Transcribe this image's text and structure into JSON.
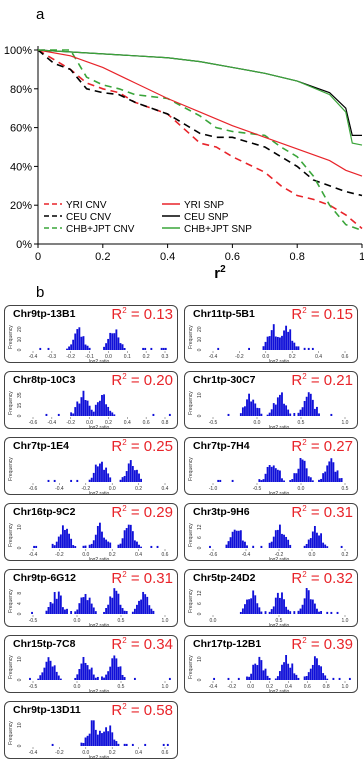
{
  "panel_a_label": "a",
  "panel_b_label": "b",
  "chart_data": [
    {
      "type": "line",
      "xlabel": "r",
      "xlabel_sup": "2",
      "ylabel": "",
      "xlim": [
        0,
        1
      ],
      "ylim": [
        0,
        100
      ],
      "xticks": [
        "0",
        "0.2",
        "0.4",
        "0.6",
        "0.8",
        "1"
      ],
      "yticks": [
        "0%",
        "20%",
        "40%",
        "60%",
        "80%",
        "100%"
      ],
      "legend_position": "bottom-left",
      "series": [
        {
          "name": "YRI CNV",
          "color": "#e8242a",
          "dash": true,
          "x": [
            0,
            0.05,
            0.1,
            0.15,
            0.2,
            0.25,
            0.3,
            0.4,
            0.5,
            0.55,
            0.6,
            0.7,
            0.75,
            0.8,
            0.85,
            0.9,
            0.95,
            1.0
          ],
          "y": [
            100,
            95,
            90,
            83,
            80,
            78,
            73,
            67,
            52,
            50,
            45,
            37,
            30,
            25,
            23,
            20,
            15,
            8
          ]
        },
        {
          "name": "CEU CNV",
          "color": "#000000",
          "dash": true,
          "x": [
            0,
            0.05,
            0.1,
            0.15,
            0.2,
            0.25,
            0.3,
            0.4,
            0.5,
            0.55,
            0.6,
            0.7,
            0.75,
            0.8,
            0.85,
            0.9,
            0.95,
            1.0
          ],
          "y": [
            100,
            93,
            90,
            80,
            78,
            77,
            73,
            67,
            57,
            55,
            55,
            50,
            45,
            40,
            33,
            30,
            27,
            25
          ]
        },
        {
          "name": "CHB+JPT CNV",
          "color": "#3aa53a",
          "dash": true,
          "x": [
            0,
            0.05,
            0.1,
            0.15,
            0.2,
            0.25,
            0.3,
            0.4,
            0.5,
            0.55,
            0.6,
            0.7,
            0.75,
            0.8,
            0.85,
            0.9,
            0.95,
            1.0
          ],
          "y": [
            100,
            100,
            100,
            86,
            82,
            80,
            77,
            75,
            66,
            60,
            58,
            56,
            50,
            45,
            35,
            20,
            10,
            7
          ]
        },
        {
          "name": "YRI SNP",
          "color": "#e8242a",
          "dash": false,
          "x": [
            0,
            0.1,
            0.2,
            0.3,
            0.4,
            0.5,
            0.6,
            0.7,
            0.8,
            0.9,
            0.95,
            1.0
          ],
          "y": [
            100,
            97,
            91,
            83,
            75,
            68,
            61,
            55,
            49,
            43,
            38,
            35
          ]
        },
        {
          "name": "CEU SNP",
          "color": "#000000",
          "dash": false,
          "x": [
            0,
            0.2,
            0.4,
            0.5,
            0.6,
            0.7,
            0.8,
            0.9,
            0.95,
            0.97,
            1.0
          ],
          "y": [
            100,
            98,
            96,
            94,
            91,
            88,
            84,
            78,
            70,
            56,
            56
          ]
        },
        {
          "name": "CHB+JPT SNP",
          "color": "#3aa53a",
          "dash": false,
          "x": [
            0,
            0.2,
            0.4,
            0.5,
            0.6,
            0.7,
            0.8,
            0.9,
            0.95,
            0.97,
            1.0
          ],
          "y": [
            100,
            98,
            96,
            94,
            91,
            88,
            84,
            77,
            68,
            52,
            51
          ]
        }
      ]
    },
    {
      "type": "bar",
      "panels": [
        {
          "name": "Chr9tp-13B1",
          "r2": "= 0.13",
          "xticks": [
            "-0.4",
            "-0.3",
            "-0.2",
            "-0.1",
            "0.0",
            "0.1",
            "0.2",
            "0.3"
          ],
          "yticks": [
            "0",
            "10",
            "20"
          ],
          "xlabel": "log2 ratio",
          "ylabel": "Frequency",
          "peaks": [
            0.35,
            0.6
          ]
        },
        {
          "name": "Chr11tp-5B1",
          "r2": "= 0.15",
          "xticks": [
            "-0.4",
            "-0.2",
            "0.0",
            "0.2",
            "0.4",
            "0.6"
          ],
          "yticks": [
            "0",
            "10",
            "20"
          ],
          "xlabel": "log2 ratio",
          "ylabel": "Frequency",
          "peaks": [
            0.45,
            0.55
          ]
        },
        {
          "name": "Chr8tp-10C3",
          "r2": "= 0.20",
          "xticks": [
            "-0.6",
            "-0.4",
            "-0.2",
            "0.0",
            "0.2",
            "0.4",
            "0.6",
            "0.8"
          ],
          "yticks": [
            "0",
            "15",
            "35"
          ],
          "xlabel": "log2 ratio",
          "ylabel": "Frequency",
          "peaks": [
            0.38,
            0.52
          ]
        },
        {
          "name": "Chr1tp-30C7",
          "r2": "= 0.21",
          "xticks": [
            "-0.5",
            "0.0",
            "0.5",
            "1.0"
          ],
          "yticks": [
            "0",
            "10"
          ],
          "xlabel": "log2 ratio",
          "ylabel": "Frequency",
          "peaks": [
            0.3,
            0.5,
            0.7
          ]
        },
        {
          "name": "Chr7tp-1E4",
          "r2": "= 0.25",
          "xticks": [
            "-0.6",
            "-0.4",
            "-0.2",
            "0.0",
            "0.2",
            "0.4"
          ],
          "yticks": [],
          "xlabel": "log2 ratio",
          "ylabel": "Frequency",
          "peaks": [
            0.5,
            0.72
          ]
        },
        {
          "name": "Chr7tp-7H4",
          "r2": "= 0.27",
          "xticks": [
            "-1.0",
            "-0.5",
            "0.0",
            "0.5"
          ],
          "yticks": [],
          "xlabel": "log2 ratio",
          "ylabel": "Frequency",
          "peaks": [
            0.45,
            0.65,
            0.85
          ]
        },
        {
          "name": "Chr16tp-9C2",
          "r2": "= 0.29",
          "xticks": [
            "-0.4",
            "-0.2",
            "0.0",
            "0.2",
            "0.4",
            "0.6"
          ],
          "yticks": [
            "0",
            "10"
          ],
          "xlabel": "log2 ratio",
          "ylabel": "Frequency",
          "peaks": [
            0.25,
            0.5,
            0.7
          ]
        },
        {
          "name": "Chr3tp-9H6",
          "r2": "= 0.31",
          "xticks": [
            "-0.6",
            "-0.4",
            "-0.2",
            "0.0",
            "0.2"
          ],
          "yticks": [
            "0",
            "6",
            "12"
          ],
          "xlabel": "log2 ratio",
          "ylabel": "Frequency",
          "peaks": [
            0.2,
            0.5,
            0.75
          ]
        },
        {
          "name": "Chr9tp-6G12",
          "r2": "= 0.31",
          "xticks": [
            "-0.5",
            "0.0",
            "0.5",
            "1.0"
          ],
          "yticks": [
            "0",
            "4",
            "8"
          ],
          "xlabel": "log2 ratio",
          "ylabel": "Frequency",
          "peaks": [
            0.2,
            0.4,
            0.6,
            0.8
          ]
        },
        {
          "name": "Chr5tp-24D2",
          "r2": "= 0.32",
          "xticks": [
            "0.0",
            "0.5",
            "1.0"
          ],
          "yticks": [
            "0",
            "6",
            "12"
          ],
          "xlabel": "log2 ratio",
          "ylabel": "Frequency",
          "peaks": [
            0.3,
            0.5,
            0.7
          ]
        },
        {
          "name": "Chr15tp-7C8",
          "r2": "= 0.34",
          "xticks": [
            "-0.5",
            "0.0",
            "0.5",
            "1.0"
          ],
          "yticks": [
            "0",
            "10"
          ],
          "xlabel": "log2 ratio",
          "ylabel": "Frequency",
          "peaks": [
            0.15,
            0.4,
            0.6
          ]
        },
        {
          "name": "Chr17tp-12B1",
          "r2": "= 0.39",
          "xticks": [
            "-0.4",
            "-0.2",
            "0.0",
            "0.2",
            "0.4",
            "0.6",
            "0.8",
            "1.0"
          ],
          "yticks": [
            "0",
            "10"
          ],
          "xlabel": "log2 ratio",
          "ylabel": "Frequency",
          "peaks": [
            0.35,
            0.55,
            0.75
          ]
        },
        {
          "name": "Chr9tp-13D11",
          "r2": "= 0.58",
          "xticks": [
            "-0.4",
            "-0.2",
            "0.0",
            "0.2",
            "0.4",
            "0.6"
          ],
          "yticks": [
            "0",
            "10"
          ],
          "xlabel": "log2 ratio",
          "ylabel": "Frequency",
          "peaks": [
            0.45,
            0.55
          ]
        }
      ]
    }
  ]
}
